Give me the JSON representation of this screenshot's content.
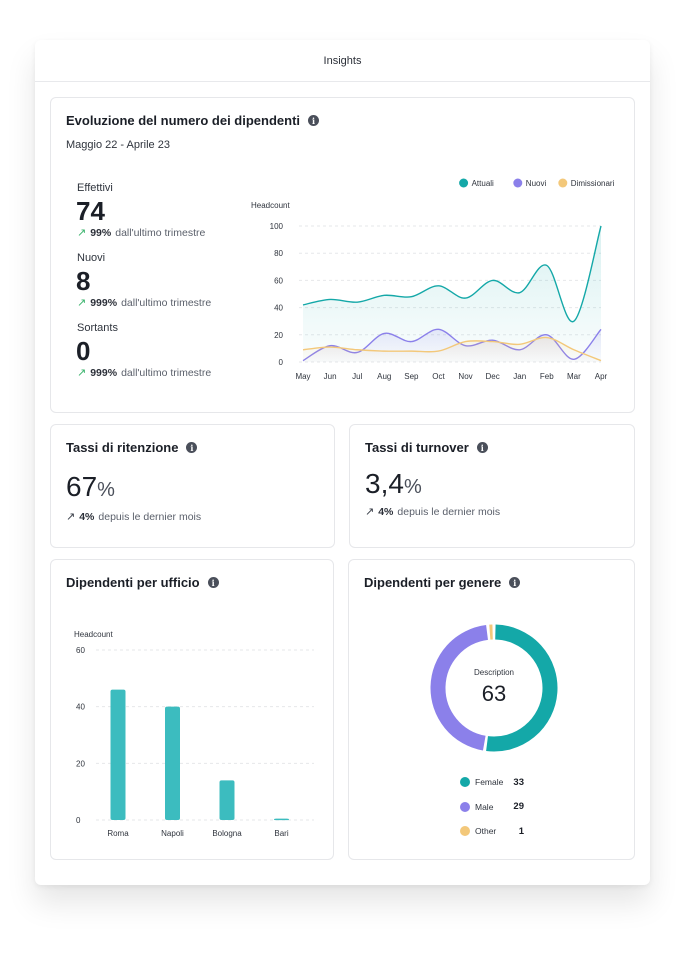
{
  "window": {
    "title": "Insights"
  },
  "evolution": {
    "title": "Evoluzione del numero dei dipendenti",
    "period": "Maggio 22 - Aprile 23",
    "stats": [
      {
        "label": "Effettivi",
        "value": "74",
        "delta_value": "99%",
        "delta_text": "dall'ultimo trimestre"
      },
      {
        "label": "Nuovi",
        "value": "8",
        "delta_value": "999%",
        "delta_text": "dall'ultimo trimestre"
      },
      {
        "label": "Sortants",
        "value": "0",
        "delta_value": "999%",
        "delta_text": "dall'ultimo trimestre"
      }
    ]
  },
  "retention": {
    "title": "Tassi di ritenzione",
    "value": "67",
    "unit": "%",
    "delta_value": "4%",
    "delta_text": "depuis le dernier mois"
  },
  "turnover": {
    "title": "Tassi di turnover",
    "value": "3,4",
    "unit": "%",
    "delta_value": "4%",
    "delta_text": "depuis le dernier mois"
  },
  "office": {
    "title": "Dipendenti per ufficio"
  },
  "gender": {
    "title": "Dipendenti per genere",
    "center_label": "Description",
    "center_value": "63"
  },
  "colors": {
    "teal": "#14a8a8",
    "purple": "#8b80ea",
    "orange": "#f3c87a",
    "bar": "#3cbcbf"
  },
  "chart_data": [
    {
      "type": "line",
      "ylabel": "Headcount",
      "ylim": [
        0,
        100
      ],
      "yticks": [
        0,
        20,
        40,
        60,
        80,
        100
      ],
      "categories": [
        "May",
        "Jun",
        "Jul",
        "Aug",
        "Sep",
        "Oct",
        "Nov",
        "Dec",
        "Jan",
        "Feb",
        "Mar",
        "Apr"
      ],
      "legend_position": "top-right",
      "series": [
        {
          "name": "Attuali",
          "color": "#14a8a8",
          "values": [
            42,
            46,
            44,
            49,
            48,
            56,
            47,
            60,
            51,
            71,
            30,
            100
          ]
        },
        {
          "name": "Nuovi",
          "color": "#8b80ea",
          "values": [
            1,
            12,
            7,
            21,
            15,
            24,
            12,
            16,
            9,
            20,
            2,
            24
          ]
        },
        {
          "name": "Dimissionari",
          "color": "#f3c87a",
          "values": [
            9,
            11,
            9,
            8,
            8,
            8,
            15,
            15,
            13,
            18,
            9,
            1
          ]
        }
      ]
    },
    {
      "type": "bar",
      "ylabel": "Headcount",
      "ylim": [
        0,
        60
      ],
      "yticks": [
        0,
        20,
        40,
        60
      ],
      "categories": [
        "Roma",
        "Napoli",
        "Bologna",
        "Bari"
      ],
      "values": [
        46,
        40,
        14,
        0.5
      ]
    },
    {
      "type": "pie",
      "style": "donut",
      "categories": [
        "Female",
        "Male",
        "Other"
      ],
      "values": [
        33,
        29,
        1
      ],
      "colors": [
        "#14a8a8",
        "#8b80ea",
        "#f3c87a"
      ],
      "legend_position": "bottom"
    }
  ]
}
